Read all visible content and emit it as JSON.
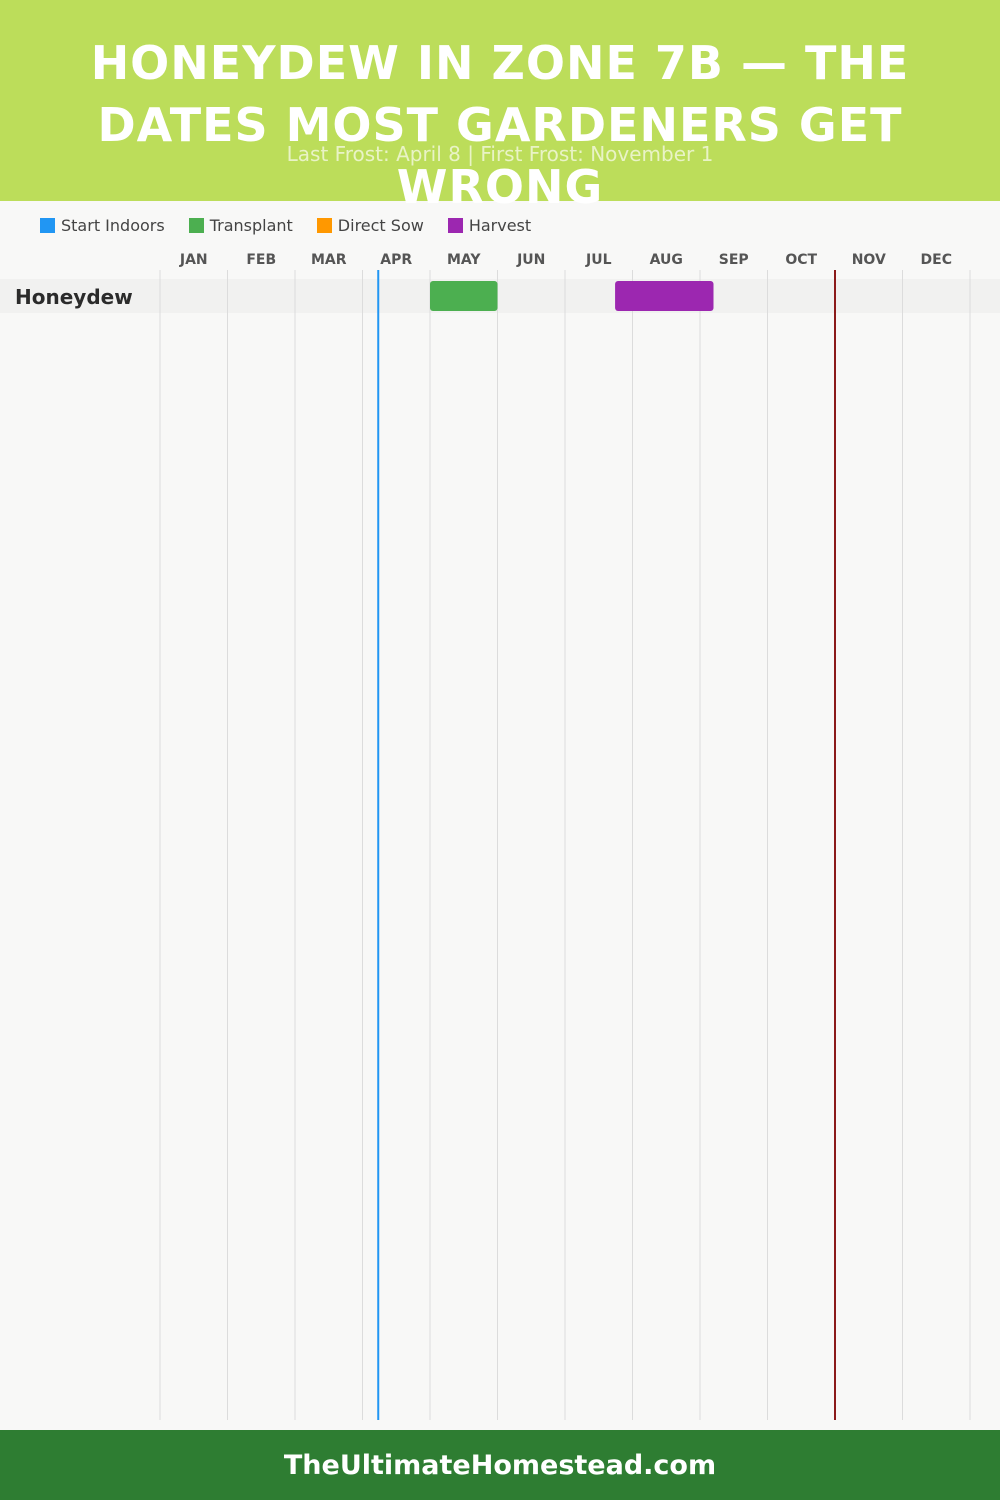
{
  "header": {
    "title": "HONEYDEW IN ZONE 7B — THE DATES MOST GARDENERS GET WRONG",
    "subtitle": "Last Frost: April 8 | First Frost: November 1"
  },
  "legend": {
    "items": [
      {
        "label": "Start Indoors",
        "color": "#2196f3"
      },
      {
        "label": "Transplant",
        "color": "#4caf50"
      },
      {
        "label": "Direct Sow",
        "color": "#ff9800"
      },
      {
        "label": "Harvest",
        "color": "#9c27b0"
      }
    ]
  },
  "footer": {
    "site": "TheUltimateHomestead.com"
  },
  "colors": {
    "header_bg": "#bcdd5a",
    "footer_bg": "#2e7d32",
    "last_frost_line": "#2196f3",
    "first_frost_line": "#8b1a1a"
  },
  "chart_data": {
    "type": "gantt",
    "months": [
      "JAN",
      "FEB",
      "MAR",
      "APR",
      "MAY",
      "JUN",
      "JUL",
      "AUG",
      "SEP",
      "OCT",
      "NOV",
      "DEC"
    ],
    "rows": [
      {
        "crop": "Honeydew",
        "tasks": [
          {
            "phase": "Transplant",
            "start": "May 1",
            "end": "May 31"
          },
          {
            "phase": "Harvest",
            "start": "Jul 24",
            "end": "Sep 6"
          }
        ]
      }
    ],
    "markers": [
      {
        "name": "Last Frost",
        "date": "April 8"
      },
      {
        "name": "First Frost",
        "date": "November 1"
      }
    ],
    "grid": true
  }
}
